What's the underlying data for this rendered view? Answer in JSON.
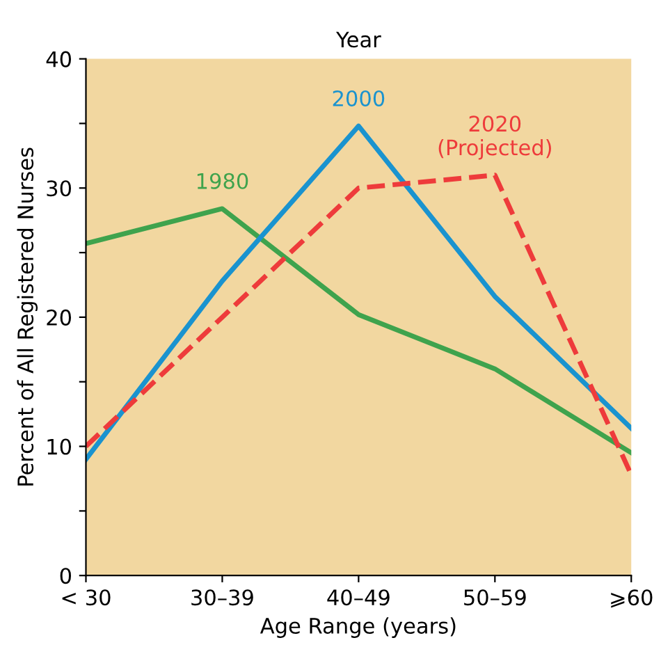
{
  "chart_data": {
    "type": "line",
    "title": "Year",
    "xlabel": "Age Range (years)",
    "ylabel": "Percent of All Registered Nurses",
    "categories": [
      "< 30",
      "30–39",
      "40–49",
      "50–59",
      "⩾60"
    ],
    "series": [
      {
        "name": "1980",
        "color": "#3fa34d",
        "values": [
          25.7,
          28.4,
          20.2,
          16.0,
          9.5
        ]
      },
      {
        "name": "2000",
        "color": "#1a93cf",
        "values": [
          9.0,
          22.8,
          34.8,
          21.6,
          11.4
        ]
      },
      {
        "name": "2020\n(Projected)",
        "color": "#ee3b3b",
        "line_style": "dashed",
        "values": [
          10.0,
          20.0,
          30.0,
          31.0,
          7.8
        ]
      }
    ],
    "ylim": [
      0,
      40
    ],
    "yticks": [
      0,
      {
        "value": 5,
        "label": null
      },
      10,
      {
        "value": 15,
        "label": null
      },
      20,
      {
        "value": 25,
        "label": null
      },
      30,
      {
        "value": 35,
        "label": null
      },
      40
    ],
    "grid": false,
    "legend": false,
    "marker": "none"
  }
}
